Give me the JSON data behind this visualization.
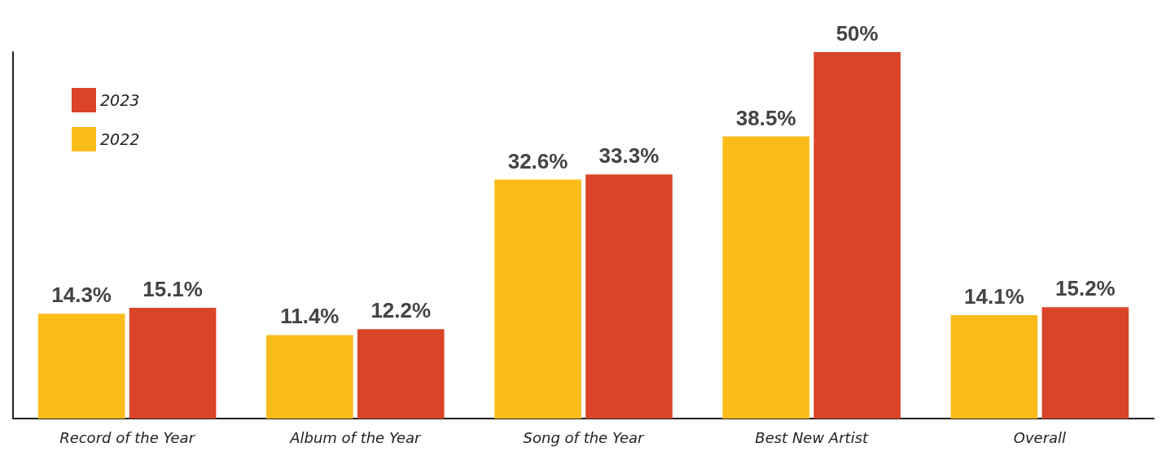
{
  "chart_data": {
    "type": "bar",
    "categories": [
      "Record of the Year",
      "Album of the Year",
      "Song of the Year",
      "Best New Artist",
      "Overall"
    ],
    "series": [
      {
        "name": "2022",
        "color": "#fbbc1a",
        "values": [
          14.3,
          11.4,
          32.6,
          38.5,
          14.1
        ],
        "value_labels": [
          "14.3%",
          "11.4%",
          "32.6%",
          "38.5%",
          "14.1%"
        ]
      },
      {
        "name": "2023",
        "color": "#da4429",
        "values": [
          15.1,
          12.2,
          33.3,
          50,
          15.2
        ],
        "value_labels": [
          "15.1%",
          "12.2%",
          "33.3%",
          "50%",
          "15.2%"
        ]
      }
    ],
    "legend": "top left",
    "grid": false
  }
}
